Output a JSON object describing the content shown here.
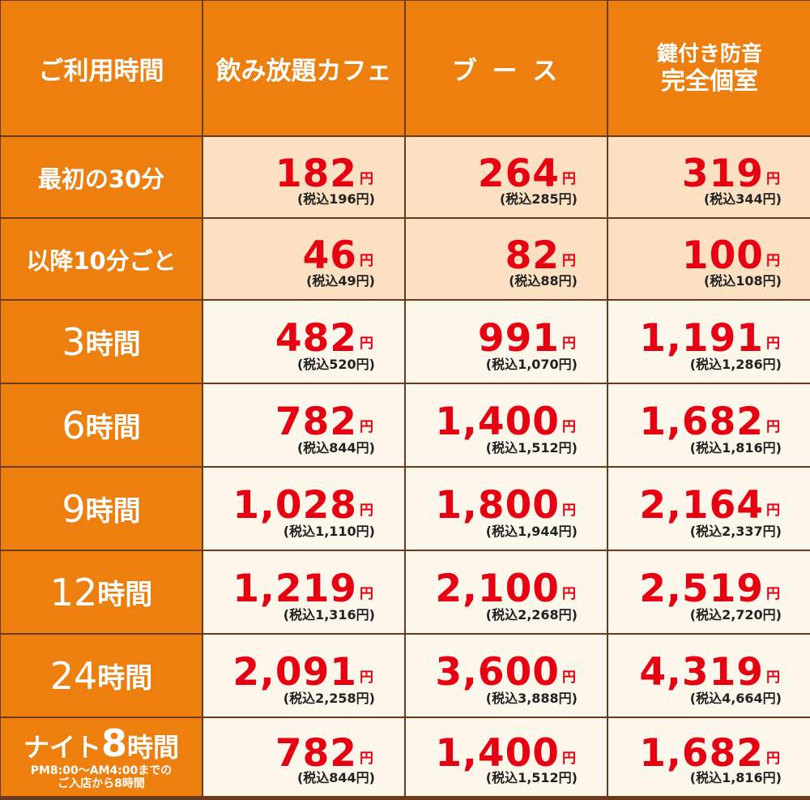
{
  "header": {
    "time": "ご利用時間",
    "cafe": "飲み放題カフェ",
    "booth": "ブ ー ス",
    "room_line1": "鍵付き防音",
    "room_line2": "完全個室"
  },
  "unit": "円",
  "rows": [
    {
      "label": "最初の30分",
      "cafe": {
        "price": "182",
        "tax": "(税込196円)"
      },
      "booth": {
        "price": "264",
        "tax": "(税込285円)"
      },
      "room": {
        "price": "319",
        "tax": "(税込344円)"
      }
    },
    {
      "label": "以降10分ごと",
      "cafe": {
        "price": "46",
        "tax": "(税込49円)"
      },
      "booth": {
        "price": "82",
        "tax": "(税込88円)"
      },
      "room": {
        "price": "100",
        "tax": "(税込108円)"
      }
    },
    {
      "num": "3",
      "suffix": "時間",
      "cafe": {
        "price": "482",
        "tax": "(税込520円)"
      },
      "booth": {
        "price": "991",
        "tax": "(税込1,070円)"
      },
      "room": {
        "price": "1,191",
        "tax": "(税込1,286円)"
      }
    },
    {
      "num": "6",
      "suffix": "時間",
      "cafe": {
        "price": "782",
        "tax": "(税込844円)"
      },
      "booth": {
        "price": "1,400",
        "tax": "(税込1,512円)"
      },
      "room": {
        "price": "1,682",
        "tax": "(税込1,816円)"
      }
    },
    {
      "num": "9",
      "suffix": "時間",
      "cafe": {
        "price": "1,028",
        "tax": "(税込1,110円)"
      },
      "booth": {
        "price": "1,800",
        "tax": "(税込1,944円)"
      },
      "room": {
        "price": "2,164",
        "tax": "(税込2,337円)"
      }
    },
    {
      "num": "12",
      "suffix": "時間",
      "cafe": {
        "price": "1,219",
        "tax": "(税込1,316円)"
      },
      "booth": {
        "price": "2,100",
        "tax": "(税込2,268円)"
      },
      "room": {
        "price": "2,519",
        "tax": "(税込2,720円)"
      }
    },
    {
      "num": "24",
      "suffix": "時間",
      "cafe": {
        "price": "2,091",
        "tax": "(税込2,258円)"
      },
      "booth": {
        "price": "3,600",
        "tax": "(税込3,888円)"
      },
      "room": {
        "price": "4,319",
        "tax": "(税込4,664円)"
      }
    },
    {
      "prefix": "ナイト",
      "num": "8",
      "suffix": "時間",
      "sub1": "PM8:00～AM4:00までの",
      "sub2": "ご入店から8時間",
      "cafe": {
        "price": "782",
        "tax": "(税込844円)"
      },
      "booth": {
        "price": "1,400",
        "tax": "(税込1,512円)"
      },
      "room": {
        "price": "1,682",
        "tax": "(税込1,816円)"
      }
    }
  ],
  "colors": {
    "header": "#ec7f0e",
    "price": "#e60012",
    "light_row": "#fbe0c2",
    "white_row": "#fdf6ea",
    "border": "#6b3a1a"
  }
}
